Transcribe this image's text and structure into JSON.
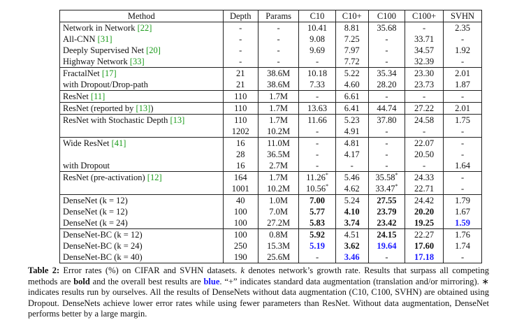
{
  "table": {
    "header": [
      "Method",
      "Depth",
      "Params",
      "C10",
      "C10+",
      "C100",
      "C100+",
      "SVHN"
    ],
    "groups": [
      [
        [
          {
            "text": "Network in Network",
            "ref": "[22]"
          },
          "-",
          "-",
          "10.41",
          "8.81",
          "35.68",
          "-",
          "2.35"
        ],
        [
          {
            "text": "All-CNN",
            "ref": "[31]"
          },
          "-",
          "-",
          "9.08",
          "7.25",
          "-",
          "33.71",
          "-"
        ],
        [
          {
            "text": "Deeply Supervised Net",
            "ref": "[20]"
          },
          "-",
          "-",
          "9.69",
          "7.97",
          "-",
          "34.57",
          "1.92"
        ],
        [
          {
            "text": "Highway Network",
            "ref": "[33]"
          },
          "-",
          "-",
          "-",
          "7.72",
          "-",
          "32.39",
          "-"
        ]
      ],
      [
        [
          {
            "text": "FractalNet",
            "ref": "[17]"
          },
          "21",
          "38.6M",
          "10.18",
          "5.22",
          "35.34",
          "23.30",
          "2.01"
        ],
        [
          "with Dropout/Drop-path",
          "21",
          "38.6M",
          "7.33",
          "4.60",
          "28.20",
          "23.73",
          "1.87"
        ]
      ],
      [
        [
          {
            "text": "ResNet",
            "ref": "[11]"
          },
          "110",
          "1.7M",
          "-",
          "6.61",
          "-",
          "-",
          "-"
        ]
      ],
      [
        [
          {
            "text": "ResNet (reported by",
            "ref": "[13]",
            "after": ")"
          },
          "110",
          "1.7M",
          "13.63",
          "6.41",
          "44.74",
          "27.22",
          "2.01"
        ]
      ],
      [
        [
          {
            "text": "ResNet with Stochastic Depth",
            "ref": "[13]"
          },
          "110",
          "1.7M",
          "11.66",
          "5.23",
          "37.80",
          "24.58",
          "1.75"
        ],
        [
          null,
          "1202",
          "10.2M",
          "-",
          "4.91",
          "-",
          "-",
          "-"
        ]
      ],
      [
        [
          {
            "text": "Wide ResNet",
            "ref": "[41]"
          },
          "16",
          "11.0M",
          "-",
          "4.81",
          "-",
          "22.07",
          "-"
        ],
        [
          null,
          "28",
          "36.5M",
          "-",
          "4.17",
          "-",
          "20.50",
          "-"
        ],
        [
          "with Dropout",
          "16",
          "2.7M",
          "-",
          "-",
          "-",
          "-",
          "1.64"
        ]
      ],
      [
        [
          {
            "text": "ResNet (pre-activation)",
            "ref": "[12]"
          },
          "164",
          "1.7M",
          {
            "text": "11.26",
            "sup": "*"
          },
          "5.46",
          {
            "text": "35.58",
            "sup": "*"
          },
          "24.33",
          "-"
        ],
        [
          null,
          "1001",
          "10.2M",
          {
            "text": "10.56",
            "sup": "*"
          },
          "4.62",
          {
            "text": "33.47",
            "sup": "*"
          },
          "22.71",
          "-"
        ]
      ],
      [
        [
          "DenseNet (k = 12)",
          "40",
          "1.0M",
          {
            "text": "7.00",
            "style": "bold"
          },
          "5.24",
          {
            "text": "27.55",
            "style": "bold"
          },
          "24.42",
          "1.79"
        ],
        [
          "DenseNet (k = 12)",
          "100",
          "7.0M",
          {
            "text": "5.77",
            "style": "bold"
          },
          {
            "text": "4.10",
            "style": "bold"
          },
          {
            "text": "23.79",
            "style": "bold"
          },
          {
            "text": "20.20",
            "style": "bold"
          },
          "1.67"
        ],
        [
          "DenseNet (k = 24)",
          "100",
          "27.2M",
          {
            "text": "5.83",
            "style": "bold"
          },
          {
            "text": "3.74",
            "style": "bold"
          },
          {
            "text": "23.42",
            "style": "bold"
          },
          {
            "text": "19.25",
            "style": "bold"
          },
          {
            "text": "1.59",
            "style": "bold-blue"
          }
        ]
      ],
      [
        [
          "DenseNet-BC (k = 12)",
          "100",
          "0.8M",
          {
            "text": "5.92",
            "style": "bold"
          },
          "4.51",
          {
            "text": "24.15",
            "style": "bold"
          },
          "22.27",
          "1.76"
        ],
        [
          "DenseNet-BC (k = 24)",
          "250",
          "15.3M",
          {
            "text": "5.19",
            "style": "bold-blue"
          },
          {
            "text": "3.62",
            "style": "bold"
          },
          {
            "text": "19.64",
            "style": "bold-blue"
          },
          {
            "text": "17.60",
            "style": "bold"
          },
          "1.74"
        ],
        [
          "DenseNet-BC (k = 40)",
          "190",
          "25.6M",
          "-",
          {
            "text": "3.46",
            "style": "bold-blue"
          },
          "-",
          {
            "text": "17.18",
            "style": "bold-blue"
          },
          "-"
        ]
      ]
    ]
  },
  "caption": [
    {
      "text": "Table 2:",
      "style": "bold"
    },
    {
      "text": " Error rates (%) on CIFAR and SVHN datasets. "
    },
    {
      "text": "k",
      "style": "italic"
    },
    {
      "text": " denotes network’s growth rate. Results that surpass all competing methods are "
    },
    {
      "text": "bold",
      "style": "bold"
    },
    {
      "text": " and the overall best results are "
    },
    {
      "text": "blue",
      "style": "bold-blue"
    },
    {
      "text": ". “+” indicates standard data augmentation (translation and/or mirroring). ∗ indicates results run by ourselves. All the results of DenseNets without data augmentation (C10, C100, SVHN) are obtained using Dropout. DenseNets achieve lower error rates while using fewer parameters than ResNet. Without data augmentation, DenseNet performs better by a large margin."
    }
  ]
}
